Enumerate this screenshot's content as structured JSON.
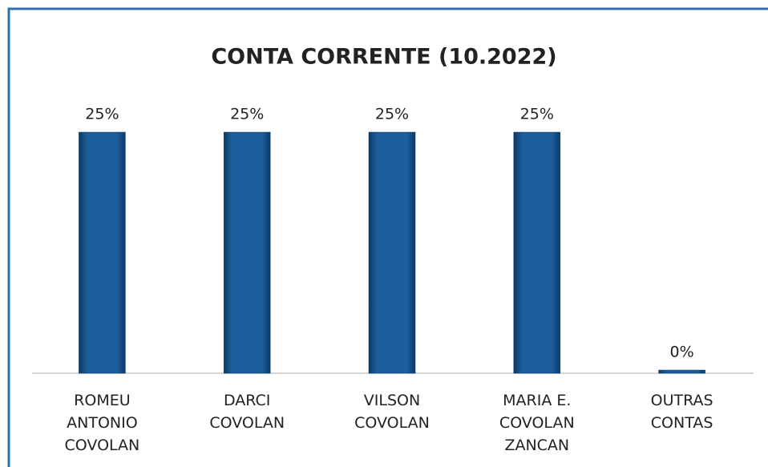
{
  "chart_data": {
    "type": "bar",
    "title": "CONTA CORRENTE (10.2022)",
    "categories": [
      "ROMEU\nANTONIO\nCOVOLAN",
      "DARCI\nCOVOLAN",
      "VILSON\nCOVOLAN",
      "MARIA E.\nCOVOLAN\nZANCAN",
      "OUTRAS\nCONTAS"
    ],
    "values": [
      25,
      25,
      25,
      25,
      0
    ],
    "value_labels": [
      "25%",
      "25%",
      "25%",
      "25%",
      "0%"
    ],
    "color": "#1c5e9c",
    "ylim": [
      0,
      25
    ]
  }
}
